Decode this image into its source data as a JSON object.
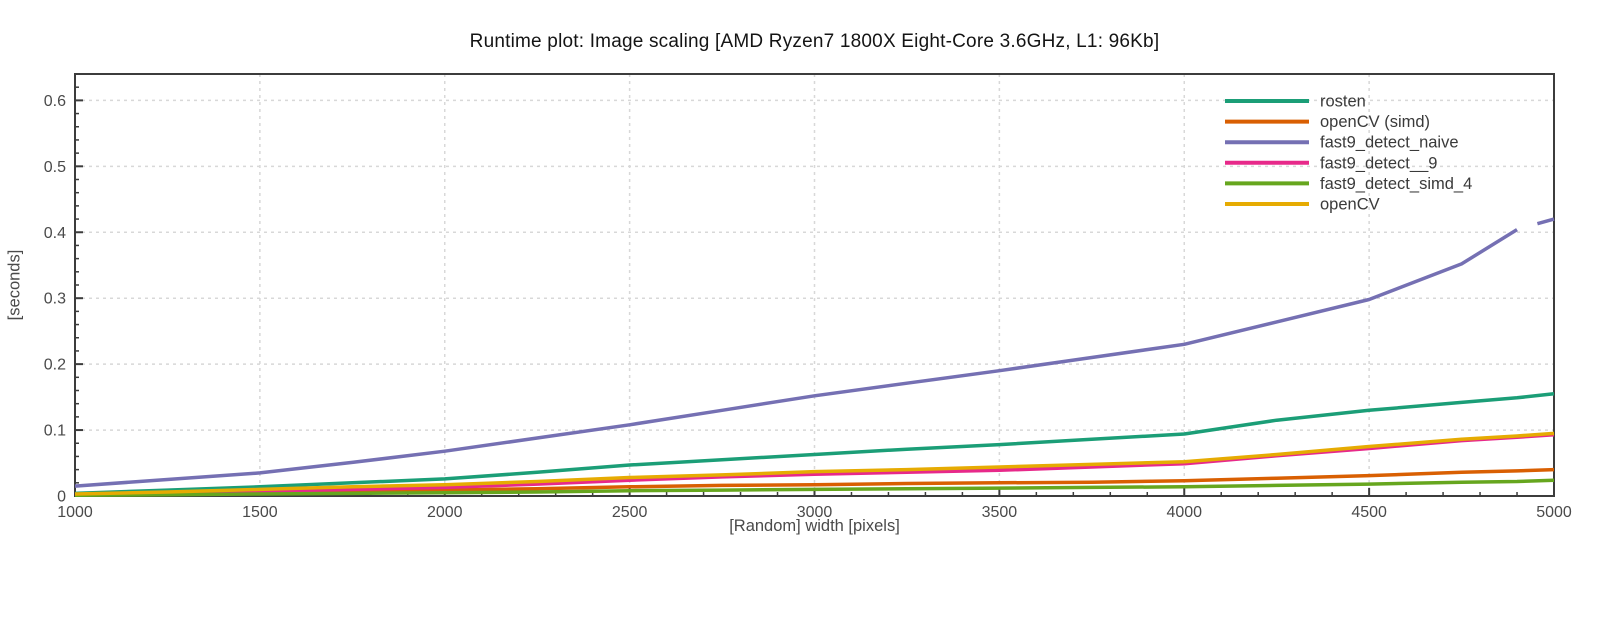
{
  "title": "Runtime plot: Image scaling [AMD Ryzen7 1800X Eight-Core 3.6GHz, L1: 96Kb]",
  "colors": {
    "background": "#ffffff",
    "frame": "#3c3c3c",
    "grid": "#d8d8d8",
    "tick_text": "#4a4a4a",
    "title_text": "#141414",
    "legend_text": "#3a3a3a"
  },
  "chart_data": {
    "type": "line",
    "title": "Runtime plot: Image scaling [AMD Ryzen7 1800X Eight-Core 3.6GHz, L1: 96Kb]",
    "xlabel": "[Random] width [pixels]",
    "ylabel": "[seconds]",
    "xlim": [
      1000,
      5000
    ],
    "ylim": [
      0,
      0.64
    ],
    "x_ticks": [
      1000,
      1500,
      2000,
      2500,
      3000,
      3500,
      4000,
      4500,
      5000
    ],
    "y_ticks": [
      0,
      0.1,
      0.2,
      0.3,
      0.4,
      0.5,
      0.6
    ],
    "y_tick_labels": [
      "0",
      "0.1",
      "0.2",
      "0.3",
      "0.4",
      "0.5",
      "0.6"
    ],
    "x_minor_step": 100,
    "y_minor_step": 0.02,
    "grid": true,
    "grid_style": "dashed",
    "legend_position": "top-right-inside",
    "series": [
      {
        "name": "rosten",
        "color": "#1b9e77",
        "segments": [
          [
            [
              1000,
              0.004
            ],
            [
              1250,
              0.009
            ],
            [
              1500,
              0.014
            ],
            [
              1750,
              0.02
            ],
            [
              2000,
              0.026
            ],
            [
              2250,
              0.036
            ],
            [
              2500,
              0.047
            ],
            [
              2750,
              0.055
            ],
            [
              3000,
              0.063
            ],
            [
              3250,
              0.071
            ],
            [
              3500,
              0.078
            ],
            [
              3750,
              0.086
            ],
            [
              4000,
              0.094
            ],
            [
              4250,
              0.115
            ],
            [
              4500,
              0.13
            ],
            [
              4750,
              0.142
            ],
            [
              4900,
              0.149
            ],
            [
              5000,
              0.155
            ]
          ]
        ]
      },
      {
        "name": "openCV (simd)",
        "color": "#d95f02",
        "segments": [
          [
            [
              1000,
              0.002
            ],
            [
              1250,
              0.003
            ],
            [
              1500,
              0.005
            ],
            [
              1750,
              0.007
            ],
            [
              2000,
              0.009
            ],
            [
              2250,
              0.011
            ],
            [
              2500,
              0.014
            ],
            [
              2750,
              0.016
            ],
            [
              3000,
              0.017
            ],
            [
              3250,
              0.019
            ],
            [
              3500,
              0.02
            ],
            [
              3750,
              0.021
            ],
            [
              4000,
              0.023
            ],
            [
              4250,
              0.027
            ],
            [
              4500,
              0.031
            ],
            [
              4750,
              0.036
            ],
            [
              4900,
              0.038
            ],
            [
              5000,
              0.04
            ]
          ]
        ]
      },
      {
        "name": "fast9_detect_naive",
        "color": "#7570b3",
        "segments": [
          [
            [
              1000,
              0.015
            ],
            [
              1250,
              0.025
            ],
            [
              1500,
              0.035
            ],
            [
              1750,
              0.051
            ],
            [
              2000,
              0.068
            ],
            [
              2250,
              0.088
            ],
            [
              2500,
              0.108
            ],
            [
              2750,
              0.13
            ],
            [
              3000,
              0.152
            ],
            [
              3250,
              0.171
            ],
            [
              3500,
              0.19
            ],
            [
              3750,
              0.21
            ],
            [
              4000,
              0.23
            ],
            [
              4250,
              0.264
            ],
            [
              4500,
              0.298
            ],
            [
              4750,
              0.352
            ],
            [
              4900,
              0.404
            ]
          ],
          [
            [
              4955,
              0.413
            ],
            [
              5000,
              0.42
            ]
          ]
        ]
      },
      {
        "name": "fast9_detect__9",
        "color": "#e7298a",
        "segments": [
          [
            [
              1000,
              0.002
            ],
            [
              1250,
              0.004
            ],
            [
              1500,
              0.007
            ],
            [
              1750,
              0.01
            ],
            [
              2000,
              0.013
            ],
            [
              2250,
              0.018
            ],
            [
              2500,
              0.024
            ],
            [
              2750,
              0.029
            ],
            [
              3000,
              0.033
            ],
            [
              3250,
              0.036
            ],
            [
              3500,
              0.039
            ],
            [
              3750,
              0.044
            ],
            [
              4000,
              0.049
            ],
            [
              4250,
              0.061
            ],
            [
              4500,
              0.072
            ],
            [
              4750,
              0.084
            ],
            [
              4900,
              0.089
            ],
            [
              5000,
              0.093
            ]
          ]
        ]
      },
      {
        "name": "fast9_detect_simd_4",
        "color": "#66a61e",
        "segments": [
          [
            [
              1000,
              0.001
            ],
            [
              1250,
              0.002
            ],
            [
              1500,
              0.003
            ],
            [
              1750,
              0.004
            ],
            [
              2000,
              0.005
            ],
            [
              2250,
              0.006
            ],
            [
              2500,
              0.008
            ],
            [
              2750,
              0.009
            ],
            [
              3000,
              0.01
            ],
            [
              3250,
              0.011
            ],
            [
              3500,
              0.012
            ],
            [
              3750,
              0.013
            ],
            [
              4000,
              0.014
            ],
            [
              4250,
              0.016
            ],
            [
              4500,
              0.018
            ],
            [
              4750,
              0.021
            ],
            [
              4900,
              0.022
            ],
            [
              5000,
              0.024
            ]
          ]
        ]
      },
      {
        "name": "openCV",
        "color": "#e6ab02",
        "segments": [
          [
            [
              1000,
              0.003
            ],
            [
              1250,
              0.006
            ],
            [
              1500,
              0.01
            ],
            [
              1750,
              0.014
            ],
            [
              2000,
              0.017
            ],
            [
              2250,
              0.022
            ],
            [
              2500,
              0.028
            ],
            [
              2750,
              0.032
            ],
            [
              3000,
              0.037
            ],
            [
              3250,
              0.04
            ],
            [
              3500,
              0.044
            ],
            [
              3750,
              0.048
            ],
            [
              4000,
              0.052
            ],
            [
              4250,
              0.063
            ],
            [
              4500,
              0.075
            ],
            [
              4750,
              0.086
            ],
            [
              4900,
              0.091
            ],
            [
              5000,
              0.095
            ]
          ]
        ]
      }
    ]
  }
}
